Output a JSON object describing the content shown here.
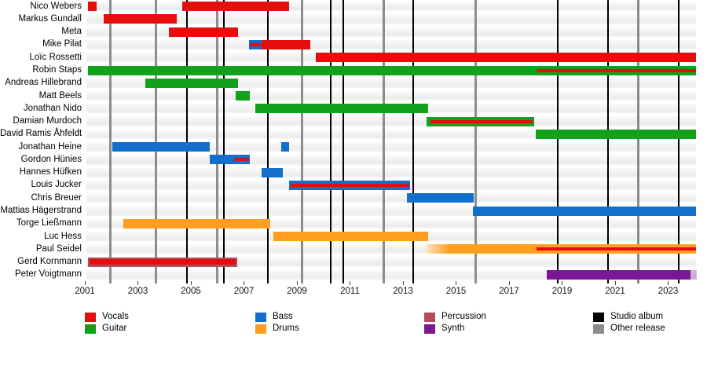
{
  "chart_data": {
    "type": "bar",
    "subtype": "band-member-timeline",
    "grid": false,
    "x_axis": {
      "start": 2001.05,
      "end": 2024.1,
      "tick_labels": [
        "2001",
        "2003",
        "2005",
        "2007",
        "2009",
        "2011",
        "2013",
        "2015",
        "2017",
        "2019",
        "2021",
        "2023"
      ]
    },
    "role_colors": {
      "vocals": "#e60d0d",
      "guitar": "#12a11a",
      "bass": "#1270cc",
      "drums": "#ff9e1f",
      "percussion": "#b34d59",
      "synth": "#7a1794"
    },
    "release_lines": {
      "studio_album_color": "#000000",
      "other_release_color": "#8c8c8c",
      "items": [
        {
          "year": 2001.95,
          "kind": "other"
        },
        {
          "year": 2003.67,
          "kind": "other"
        },
        {
          "year": 2004.85,
          "kind": "album"
        },
        {
          "year": 2005.98,
          "kind": "other"
        },
        {
          "year": 2006.24,
          "kind": "album"
        },
        {
          "year": 2007.9,
          "kind": "album"
        },
        {
          "year": 2009.18,
          "kind": "other"
        },
        {
          "year": 2010.27,
          "kind": "album"
        },
        {
          "year": 2010.76,
          "kind": "album"
        },
        {
          "year": 2012.27,
          "kind": "other"
        },
        {
          "year": 2013.38,
          "kind": "album"
        },
        {
          "year": 2015.75,
          "kind": "other"
        },
        {
          "year": 2018.85,
          "kind": "album"
        },
        {
          "year": 2020.73,
          "kind": "album"
        },
        {
          "year": 2021.88,
          "kind": "other"
        },
        {
          "year": 2023.39,
          "kind": "album"
        }
      ]
    },
    "members": [
      {
        "name": "Nico Webers",
        "segments": [
          {
            "role": "vocals",
            "start": 2001.12,
            "end": 2001.45
          },
          {
            "role": "vocals",
            "start": 2004.67,
            "end": 2008.7
          }
        ]
      },
      {
        "name": "Markus Gundall",
        "segments": [
          {
            "role": "vocals",
            "start": 2001.71,
            "end": 2004.47
          }
        ]
      },
      {
        "name": "Meta",
        "segments": [
          {
            "role": "vocals",
            "start": 2004.17,
            "end": 2006.78
          }
        ]
      },
      {
        "name": "Mike Pilat",
        "segments": [
          {
            "role": "bass",
            "start": 2007.19,
            "end": 2007.67,
            "overlay": {
              "role": "vocals",
              "start": 2007.22,
              "end": 2007.64
            }
          },
          {
            "role": "vocals",
            "start": 2007.67,
            "end": 2009.5
          }
        ]
      },
      {
        "name": "Loïc Rossetti",
        "segments": [
          {
            "role": "vocals",
            "start": 2009.71,
            "end": 2024.05
          }
        ]
      },
      {
        "name": "Robin Staps",
        "segments": [
          {
            "role": "guitar",
            "start": 2001.12,
            "end": 2024.05,
            "overlay": {
              "role": "vocals",
              "start": 2018.04,
              "end": 2024.05
            }
          }
        ]
      },
      {
        "name": "Andreas Hillebrand",
        "segments": [
          {
            "role": "guitar",
            "start": 2003.28,
            "end": 2006.78
          }
        ]
      },
      {
        "name": "Matt Beels",
        "segments": [
          {
            "role": "guitar",
            "start": 2006.69,
            "end": 2007.22
          }
        ]
      },
      {
        "name": "Jonathan Nido",
        "segments": [
          {
            "role": "guitar",
            "start": 2007.43,
            "end": 2013.95
          }
        ]
      },
      {
        "name": "Damian Murdoch",
        "segments": [
          {
            "role": "guitar",
            "start": 2013.9,
            "end": 2017.95,
            "overlay": {
              "role": "vocals",
              "start": 2014.05,
              "end": 2017.9
            }
          }
        ]
      },
      {
        "name": "David Ramis Åhfeldt",
        "segments": [
          {
            "role": "guitar",
            "start": 2018.01,
            "end": 2024.05
          }
        ]
      },
      {
        "name": "Jonathan Heine",
        "segments": [
          {
            "role": "bass",
            "start": 2002.04,
            "end": 2005.71
          },
          {
            "role": "bass",
            "start": 2008.41,
            "end": 2008.7
          }
        ]
      },
      {
        "name": "Gordon Hünies",
        "segments": [
          {
            "role": "bass",
            "start": 2005.71,
            "end": 2007.22,
            "overlay": {
              "role": "vocals",
              "start": 2006.63,
              "end": 2007.19
            }
          }
        ]
      },
      {
        "name": "Hannes Hüfken",
        "segments": [
          {
            "role": "bass",
            "start": 2007.67,
            "end": 2008.47
          }
        ]
      },
      {
        "name": "Louis Jucker",
        "segments": [
          {
            "role": "bass",
            "start": 2008.7,
            "end": 2013.27,
            "overlay": {
              "role": "vocals",
              "start": 2008.76,
              "end": 2013.22
            }
          }
        ]
      },
      {
        "name": "Chris Breuer",
        "segments": [
          {
            "role": "bass",
            "start": 2013.15,
            "end": 2015.67
          }
        ]
      },
      {
        "name": "Mattias Hägerstrand",
        "segments": [
          {
            "role": "bass",
            "start": 2015.64,
            "end": 2024.05
          }
        ]
      },
      {
        "name": "Torge Ließmann",
        "segments": [
          {
            "role": "drums",
            "start": 2002.45,
            "end": 2007.99
          }
        ]
      },
      {
        "name": "Luc Hess",
        "segments": [
          {
            "role": "drums",
            "start": 2008.11,
            "end": 2013.95
          }
        ]
      },
      {
        "name": "Paul Seidel",
        "segments": [
          {
            "role": "drums",
            "start": 2013.9,
            "end": 2024.05,
            "fade_in": true,
            "overlay": {
              "role": "vocals",
              "start": 2018.04,
              "end": 2024.05
            }
          }
        ]
      },
      {
        "name": "Gerd Kornmann",
        "segments": [
          {
            "role": "percussion",
            "start": 2001.12,
            "end": 2006.75,
            "overlay": {
              "role": "vocals",
              "start": 2001.18,
              "end": 2006.7,
              "thick": true
            }
          }
        ]
      },
      {
        "name": "Peter Voigtmann",
        "segments": [
          {
            "role": "synth",
            "start": 2018.42,
            "end": 2023.84
          },
          {
            "role": "synth",
            "start": 2023.84,
            "end": 2024.07,
            "faded": true
          }
        ]
      }
    ]
  },
  "legend": {
    "columns": [
      [
        {
          "label": "Vocals",
          "color": "#e60d0d"
        },
        {
          "label": "Guitar",
          "color": "#12a11a"
        }
      ],
      [
        {
          "label": "Bass",
          "color": "#1270cc"
        },
        {
          "label": "Drums",
          "color": "#ff9e1f"
        }
      ],
      [
        {
          "label": "Percussion",
          "color": "#b34d59"
        },
        {
          "label": "Synth",
          "color": "#7a1794"
        }
      ],
      [
        {
          "label": "Studio album",
          "color": "#000000"
        },
        {
          "label": "Other release",
          "color": "#8c8c8c"
        }
      ]
    ]
  }
}
